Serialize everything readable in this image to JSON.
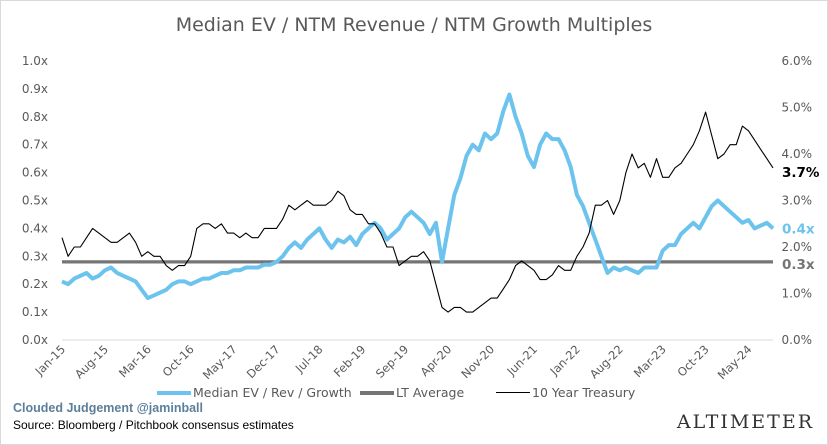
{
  "chart_data": {
    "type": "line",
    "title": "Median EV / NTM Revenue / NTM Growth Multiples",
    "xlabel": "",
    "ylabel": "",
    "y_left": {
      "min": 0,
      "max": 1.0,
      "step": 0.1,
      "tick_labels": [
        "0.0x",
        "0.1x",
        "0.2x",
        "0.3x",
        "0.4x",
        "0.5x",
        "0.6x",
        "0.7x",
        "0.8x",
        "0.9x",
        "1.0x"
      ]
    },
    "y_right": {
      "min": 0,
      "max": 6.0,
      "step": 1.0,
      "tick_labels": [
        "0.0%",
        "1.0%",
        "2.0%",
        "3.0%",
        "4.0%",
        "5.0%",
        "6.0%"
      ]
    },
    "x_start": "Jan-15",
    "x_months": 117,
    "x_tick_labels": [
      "Jan-15",
      "Aug-15",
      "Mar-16",
      "Oct-16",
      "May-17",
      "Dec-17",
      "Jul-18",
      "Feb-19",
      "Sep-19",
      "Apr-20",
      "Nov-20",
      "Jun-21",
      "Jan-22",
      "Aug-22",
      "Mar-23",
      "Oct-23",
      "May-24"
    ],
    "x_tick_month_index": [
      0,
      7,
      14,
      21,
      28,
      35,
      42,
      49,
      56,
      63,
      70,
      77,
      84,
      91,
      98,
      105,
      112
    ],
    "grid": false,
    "legend_position": "bottom",
    "series": [
      {
        "name": "Median EV / Rev / Growth",
        "axis": "left",
        "color": "#6cc4ee",
        "end_label": "0.4x",
        "values": [
          0.21,
          0.2,
          0.22,
          0.23,
          0.24,
          0.22,
          0.23,
          0.25,
          0.26,
          0.24,
          0.23,
          0.22,
          0.21,
          0.18,
          0.15,
          0.16,
          0.17,
          0.18,
          0.2,
          0.21,
          0.21,
          0.2,
          0.21,
          0.22,
          0.22,
          0.23,
          0.24,
          0.24,
          0.25,
          0.25,
          0.26,
          0.26,
          0.26,
          0.27,
          0.27,
          0.28,
          0.3,
          0.33,
          0.35,
          0.33,
          0.36,
          0.38,
          0.4,
          0.36,
          0.33,
          0.36,
          0.35,
          0.37,
          0.34,
          0.38,
          0.4,
          0.42,
          0.4,
          0.36,
          0.38,
          0.4,
          0.44,
          0.46,
          0.44,
          0.42,
          0.38,
          0.42,
          0.28,
          0.4,
          0.52,
          0.58,
          0.66,
          0.7,
          0.68,
          0.74,
          0.72,
          0.74,
          0.82,
          0.88,
          0.8,
          0.74,
          0.66,
          0.62,
          0.7,
          0.74,
          0.72,
          0.72,
          0.68,
          0.62,
          0.52,
          0.48,
          0.42,
          0.36,
          0.3,
          0.24,
          0.26,
          0.25,
          0.26,
          0.25,
          0.24,
          0.26,
          0.26,
          0.26,
          0.32,
          0.34,
          0.34,
          0.38,
          0.4,
          0.42,
          0.4,
          0.44,
          0.48,
          0.5,
          0.48,
          0.46,
          0.44,
          0.42,
          0.43,
          0.4,
          0.41,
          0.42,
          0.4
        ]
      },
      {
        "name": "LT Average",
        "axis": "left",
        "color": "#757575",
        "end_label": "0.3x",
        "constant": 0.28
      },
      {
        "name": "10 Year Treasury",
        "axis": "right",
        "color": "#000000",
        "end_label": "3.7%",
        "values": [
          2.2,
          1.8,
          2.0,
          2.0,
          2.2,
          2.4,
          2.3,
          2.2,
          2.1,
          2.1,
          2.2,
          2.3,
          2.1,
          1.8,
          1.9,
          1.8,
          1.8,
          1.6,
          1.5,
          1.6,
          1.6,
          1.8,
          2.4,
          2.5,
          2.5,
          2.4,
          2.5,
          2.3,
          2.3,
          2.2,
          2.3,
          2.2,
          2.2,
          2.4,
          2.4,
          2.4,
          2.6,
          2.9,
          2.8,
          2.9,
          3.0,
          2.9,
          2.9,
          2.9,
          3.0,
          3.2,
          3.1,
          2.8,
          2.7,
          2.7,
          2.5,
          2.5,
          2.3,
          2.0,
          2.0,
          1.6,
          1.7,
          1.8,
          1.8,
          1.9,
          1.7,
          1.2,
          0.7,
          0.6,
          0.7,
          0.7,
          0.6,
          0.6,
          0.7,
          0.8,
          0.9,
          0.9,
          1.1,
          1.3,
          1.6,
          1.7,
          1.6,
          1.5,
          1.3,
          1.3,
          1.4,
          1.6,
          1.5,
          1.5,
          1.8,
          2.0,
          2.3,
          2.9,
          2.9,
          3.0,
          2.7,
          3.0,
          3.6,
          4.0,
          3.7,
          3.8,
          3.5,
          3.9,
          3.5,
          3.5,
          3.7,
          3.8,
          4.0,
          4.2,
          4.5,
          4.9,
          4.4,
          3.9,
          4.0,
          4.2,
          4.2,
          4.6,
          4.5,
          4.3,
          4.1,
          3.9,
          3.7
        ]
      }
    ]
  },
  "footer": {
    "credit": "Clouded Judgement @jaminball",
    "source": "Source: Bloomberg / Pitchbook consensus estimates",
    "brand": "ALTIMETER"
  }
}
